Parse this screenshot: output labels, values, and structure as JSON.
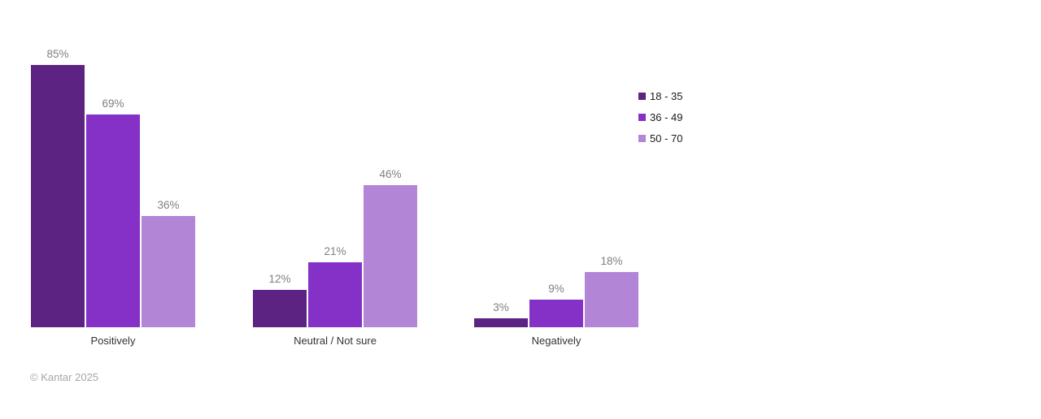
{
  "chart_data": {
    "type": "bar",
    "title": "",
    "categories": [
      "Positively",
      "Neutral / Not sure",
      "Negatively"
    ],
    "series": [
      {
        "name": "18 - 35",
        "color": "#5c2383",
        "values": [
          85,
          12,
          3
        ],
        "labels": [
          "85%",
          "12%",
          "3%"
        ]
      },
      {
        "name": "36 - 49",
        "color": "#8531c8",
        "values": [
          69,
          21,
          9
        ],
        "labels": [
          "69%",
          "21%",
          "9%"
        ]
      },
      {
        "name": "50 - 70",
        "color": "#b285d7",
        "values": [
          36,
          46,
          18
        ],
        "labels": [
          "36%",
          "46%",
          "18%"
        ]
      }
    ],
    "ylim": [
      0,
      100
    ],
    "grid": false,
    "axis_lines": false,
    "legend_position": "top-right",
    "value_label_color": "#7f7f7f",
    "category_label_color": "#333333"
  },
  "footer": {
    "text": "© Kantar 2025",
    "color": "#a6a6a6"
  }
}
